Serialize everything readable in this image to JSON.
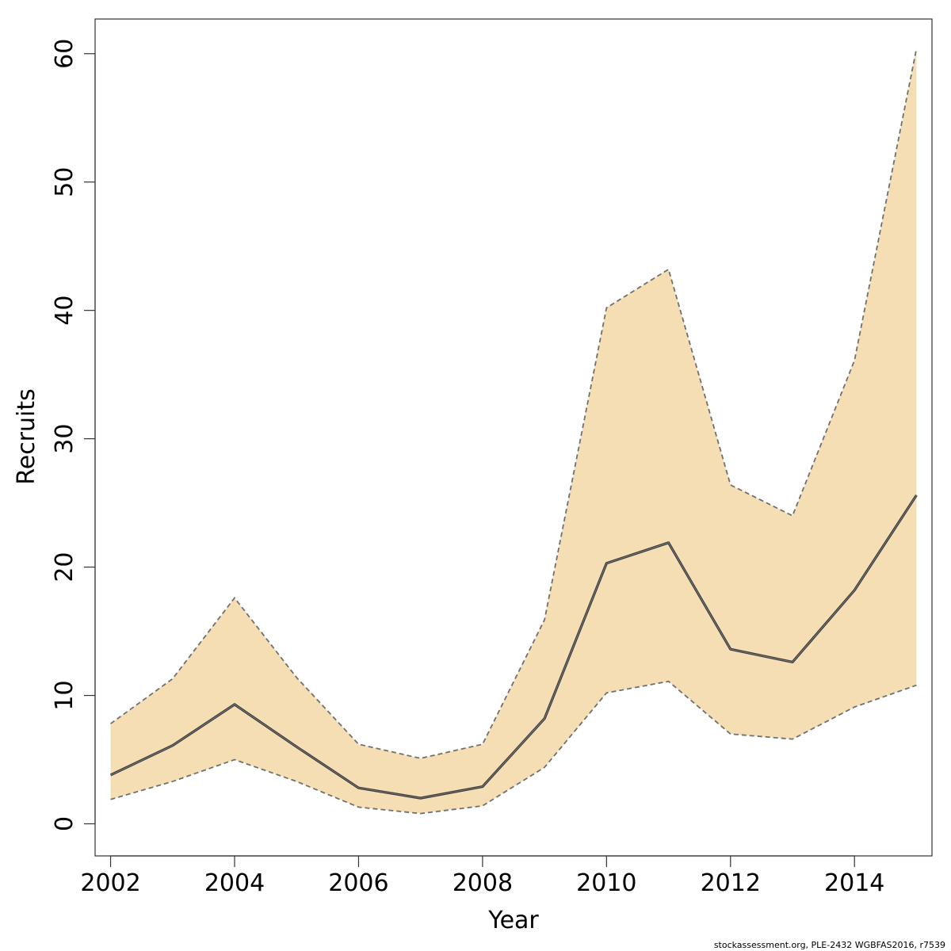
{
  "chart_data": {
    "type": "area",
    "title": "",
    "xlabel": "Year",
    "ylabel": "Recruits",
    "xlim": [
      2001.75,
      2015.25
    ],
    "ylim": [
      -2.5,
      62.7
    ],
    "x_ticks": [
      2002,
      2004,
      2006,
      2008,
      2010,
      2012,
      2014
    ],
    "y_ticks": [
      0,
      10,
      20,
      30,
      40,
      50,
      60
    ],
    "grid": false,
    "legend": "none",
    "x": [
      2002,
      2003,
      2004,
      2005,
      2006,
      2007,
      2008,
      2009,
      2010,
      2011,
      2012,
      2013,
      2014,
      2015
    ],
    "series": [
      {
        "role": "estimate",
        "values": [
          3.8,
          6.1,
          9.3,
          6.0,
          2.8,
          2.0,
          2.9,
          8.2,
          20.3,
          21.9,
          13.6,
          12.6,
          18.2,
          25.6
        ]
      },
      {
        "role": "upper",
        "values": [
          7.8,
          11.3,
          17.6,
          11.4,
          6.2,
          5.1,
          6.2,
          15.9,
          40.2,
          43.2,
          26.4,
          24.0,
          36.1,
          60.4
        ]
      },
      {
        "role": "lower",
        "values": [
          1.9,
          3.3,
          5.0,
          3.3,
          1.3,
          0.8,
          1.4,
          4.4,
          10.2,
          11.1,
          7.0,
          6.6,
          9.1,
          10.8
        ]
      }
    ],
    "colors": {
      "band_fill": "#F5DEB3",
      "bound_line": "#707070",
      "estimate_line": "#3a3a3a",
      "frame": "#333333"
    }
  },
  "credit_text": "stockassessment.org, PLE-2432  WGBFAS2016, r7539"
}
